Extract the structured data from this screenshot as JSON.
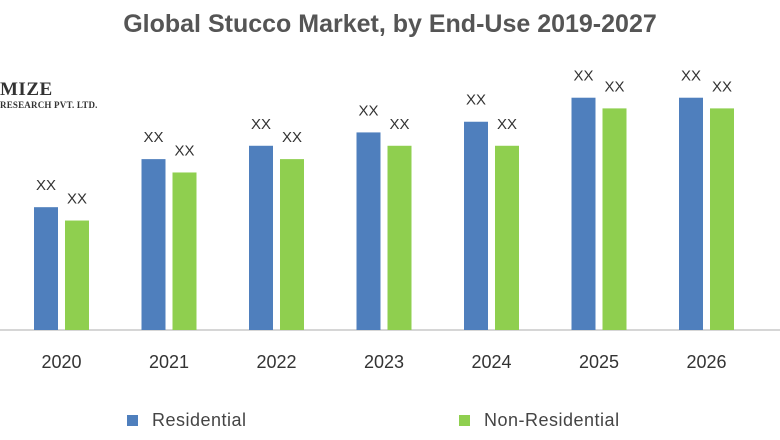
{
  "title": "Global Stucco Market, by End-Use 2019-2027",
  "watermark": {
    "line1": "MIZE",
    "line2": "RESEARCH PVT. LTD."
  },
  "colors": {
    "residential": "#4f7fbd",
    "non_residential": "#8fcf4f",
    "axis": "#c8c8c8",
    "text": "#333333"
  },
  "chart_data": {
    "type": "bar",
    "title": "Global Stucco Market, by End-Use 2019-2027",
    "categories": [
      "2020",
      "2021",
      "2022",
      "2023",
      "2024",
      "2025",
      "2026"
    ],
    "series": [
      {
        "name": "Residential",
        "values": [
          0.46,
          0.64,
          0.69,
          0.74,
          0.78,
          0.87,
          0.87
        ],
        "data_labels": [
          "XX",
          "XX",
          "XX",
          "XX",
          "XX",
          "XX",
          "XX"
        ]
      },
      {
        "name": "Non-Residential",
        "values": [
          0.41,
          0.59,
          0.64,
          0.69,
          0.69,
          0.83,
          0.83
        ],
        "data_labels": [
          "XX",
          "XX",
          "XX",
          "XX",
          "XX",
          "XX",
          "XX"
        ]
      }
    ],
    "xlabel": "",
    "ylabel": "",
    "ylim": [
      0,
      1
    ],
    "grid": false,
    "legend_position": "bottom"
  }
}
